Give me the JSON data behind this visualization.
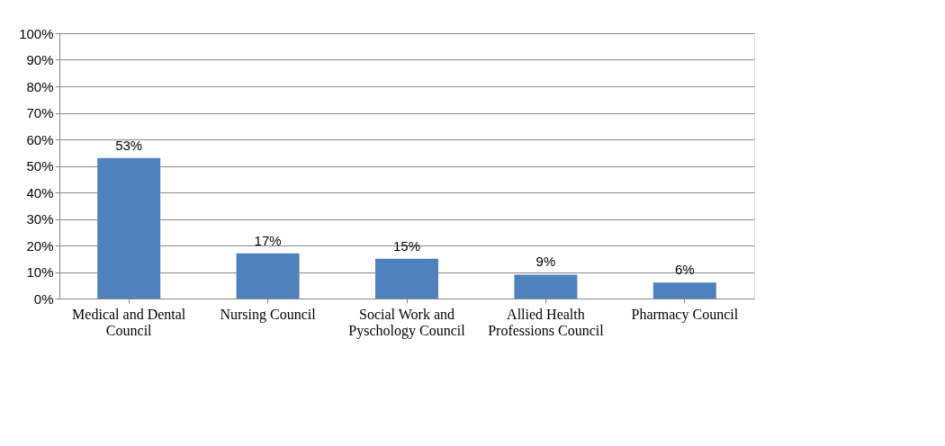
{
  "chart_data": {
    "type": "bar",
    "categories": [
      "Medical and Dental Council",
      "Nursing Council",
      "Social Work and Pyschology Council",
      "Allied Health Professions Council",
      "Pharmacy Council"
    ],
    "values": [
      53,
      17,
      15,
      9,
      6
    ],
    "value_labels": [
      "53%",
      "17%",
      "15%",
      "9%",
      "6%"
    ],
    "color": "#4f81bd",
    "ylim": [
      0,
      100
    ],
    "yticks": [
      {
        "value": 0,
        "label": "0%"
      },
      {
        "value": 10,
        "label": "10%"
      },
      {
        "value": 20,
        "label": "20%"
      },
      {
        "value": 30,
        "label": "30%"
      },
      {
        "value": 40,
        "label": "40%"
      },
      {
        "value": 50,
        "label": "50%"
      },
      {
        "value": 60,
        "label": "60%"
      },
      {
        "value": 70,
        "label": "70%"
      },
      {
        "value": 80,
        "label": "80%"
      },
      {
        "value": 90,
        "label": "90%"
      },
      {
        "value": 100,
        "label": "100%"
      }
    ],
    "grid": "y"
  }
}
